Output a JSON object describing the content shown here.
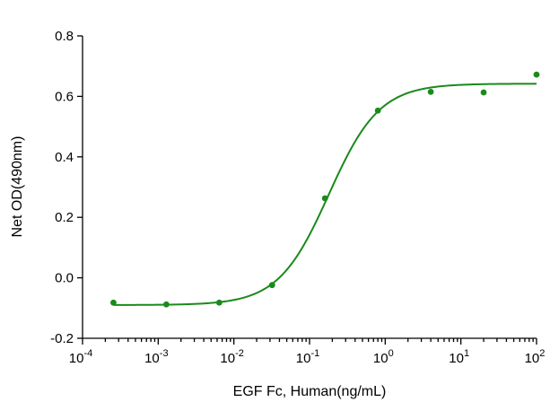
{
  "chart_data": {
    "type": "scatter",
    "title": "",
    "xlabel": "EGF Fc, Human(ng/mL)",
    "ylabel": "Net OD(490nm)",
    "x_scale": "log",
    "x_range": [
      0.0001,
      100
    ],
    "y_range": [
      -0.2,
      0.8
    ],
    "x_ticks": [
      {
        "base": "10",
        "exp": "-4"
      },
      {
        "base": "10",
        "exp": "-3"
      },
      {
        "base": "10",
        "exp": "-2"
      },
      {
        "base": "10",
        "exp": "-1"
      },
      {
        "base": "10",
        "exp": "0"
      },
      {
        "base": "10",
        "exp": "1"
      },
      {
        "base": "10",
        "exp": "2"
      }
    ],
    "y_ticks": [
      "-0.2",
      "0.0",
      "0.2",
      "0.4",
      "0.6",
      "0.8"
    ],
    "grid": false,
    "legend": "none",
    "series": [
      {
        "color": "#1a8a1a",
        "points": [
          {
            "x": 0.000256,
            "y": -0.082
          },
          {
            "x": 0.00128,
            "y": -0.088
          },
          {
            "x": 0.0064,
            "y": -0.082
          },
          {
            "x": 0.032,
            "y": -0.024
          },
          {
            "x": 0.16,
            "y": 0.263
          },
          {
            "x": 0.8,
            "y": 0.553
          },
          {
            "x": 4,
            "y": 0.615
          },
          {
            "x": 20,
            "y": 0.613
          },
          {
            "x": 100,
            "y": 0.672
          }
        ],
        "fit": {
          "model": "4PL",
          "bottom": -0.09,
          "top": 0.642,
          "ec50": 0.18,
          "hill": 1.3
        }
      }
    ]
  }
}
